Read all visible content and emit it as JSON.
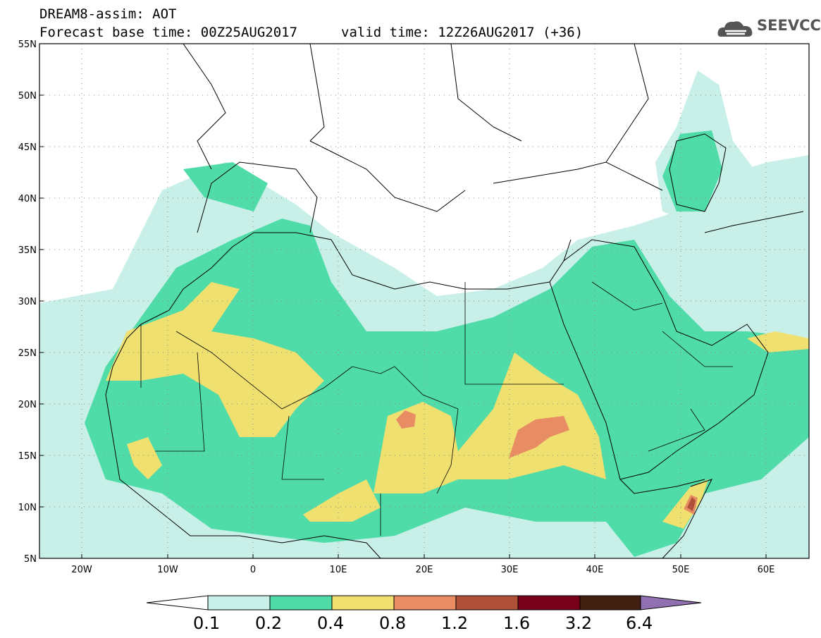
{
  "header": {
    "title_line1": "DREAM8-assim: AOT",
    "base_time": "Forecast base time: 00Z25AUG2017",
    "valid_time": "valid time: 12Z26AUG2017 (+36)"
  },
  "logo": {
    "text": "SEEVCCC",
    "icon": "cloud-icon"
  },
  "map": {
    "lat_labels": [
      "55N",
      "50N",
      "45N",
      "40N",
      "35N",
      "30N",
      "25N",
      "20N",
      "15N",
      "10N",
      "5N"
    ],
    "lon_labels": [
      "20W",
      "10W",
      "0",
      "10E",
      "20E",
      "30E",
      "40E",
      "50E",
      "60E"
    ],
    "lon_range": [
      -25,
      65
    ],
    "lat_range": [
      5,
      55
    ]
  },
  "colorbar": {
    "labels": [
      "0.1",
      "0.2",
      "0.4",
      "0.8",
      "1.2",
      "1.6",
      "3.2",
      "6.4"
    ],
    "colors": [
      "#ffffff",
      "#c8f0e8",
      "#50dca8",
      "#f0e070",
      "#e88c64",
      "#b05038",
      "#780018",
      "#402010",
      "#9070b0"
    ]
  }
}
